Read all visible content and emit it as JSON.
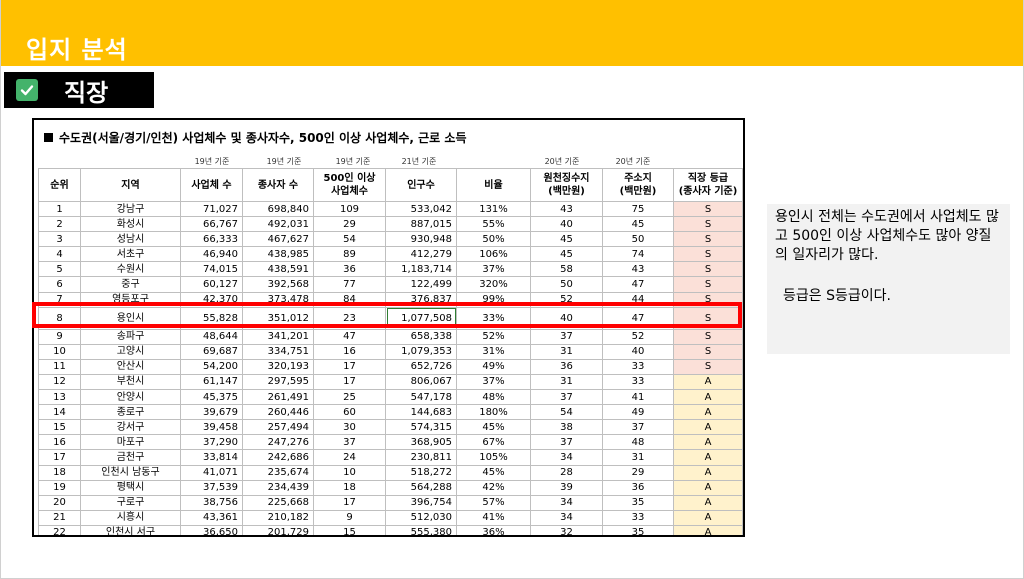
{
  "header": {
    "title": "입지 분석"
  },
  "section": {
    "label": "직장",
    "icon": "check-icon"
  },
  "table": {
    "title": "수도권(서울/경기/인천) 사업체수 및 종사자수, 500인 이상 사업체수, 근로 소득",
    "notes": [
      "19년 기준",
      "19년 기준",
      "19년 기준",
      "21년 기준",
      "20년 기준",
      "20년 기준"
    ],
    "headers": [
      "순위",
      "지역",
      "사업체 수",
      "종사자 수",
      "500인 이상\n사업체수",
      "인구수",
      "비율",
      "원천징수지\n(백만원)",
      "주소지\n(백만원)",
      "직장 등급\n(종사자 기준)"
    ],
    "rows": [
      [
        "1",
        "강남구",
        "71,027",
        "698,840",
        "109",
        "533,042",
        "131%",
        "43",
        "75",
        "S"
      ],
      [
        "2",
        "화성시",
        "66,767",
        "492,031",
        "29",
        "887,015",
        "55%",
        "40",
        "45",
        "S"
      ],
      [
        "3",
        "성남시",
        "66,333",
        "467,627",
        "54",
        "930,948",
        "50%",
        "45",
        "50",
        "S"
      ],
      [
        "4",
        "서초구",
        "46,940",
        "438,985",
        "89",
        "412,279",
        "106%",
        "45",
        "74",
        "S"
      ],
      [
        "5",
        "수원시",
        "74,015",
        "438,591",
        "36",
        "1,183,714",
        "37%",
        "58",
        "43",
        "S"
      ],
      [
        "6",
        "중구",
        "60,127",
        "392,568",
        "77",
        "122,499",
        "320%",
        "50",
        "47",
        "S"
      ],
      [
        "7",
        "영등포구",
        "42,370",
        "373,478",
        "84",
        "376,837",
        "99%",
        "52",
        "44",
        "S"
      ],
      [
        "8",
        "용인시",
        "55,828",
        "351,012",
        "23",
        "1,077,508",
        "33%",
        "40",
        "47",
        "S"
      ],
      [
        "9",
        "송파구",
        "48,644",
        "341,201",
        "47",
        "658,338",
        "52%",
        "37",
        "52",
        "S"
      ],
      [
        "10",
        "고양시",
        "69,687",
        "334,751",
        "16",
        "1,079,353",
        "31%",
        "31",
        "40",
        "S"
      ],
      [
        "11",
        "안산시",
        "54,200",
        "320,193",
        "17",
        "652,726",
        "49%",
        "36",
        "33",
        "S"
      ],
      [
        "12",
        "부천시",
        "61,147",
        "297,595",
        "17",
        "806,067",
        "37%",
        "31",
        "33",
        "A"
      ],
      [
        "13",
        "안양시",
        "45,375",
        "261,491",
        "25",
        "547,178",
        "48%",
        "37",
        "41",
        "A"
      ],
      [
        "14",
        "종로구",
        "39,679",
        "260,446",
        "60",
        "144,683",
        "180%",
        "54",
        "49",
        "A"
      ],
      [
        "15",
        "강서구",
        "39,458",
        "257,494",
        "30",
        "574,315",
        "45%",
        "38",
        "37",
        "A"
      ],
      [
        "16",
        "마포구",
        "37,290",
        "247,276",
        "37",
        "368,905",
        "67%",
        "37",
        "48",
        "A"
      ],
      [
        "17",
        "금천구",
        "33,814",
        "242,686",
        "24",
        "230,811",
        "105%",
        "34",
        "31",
        "A"
      ],
      [
        "18",
        "인천시 남동구",
        "41,071",
        "235,674",
        "10",
        "518,272",
        "45%",
        "28",
        "29",
        "A"
      ],
      [
        "19",
        "평택시",
        "37,539",
        "234,439",
        "18",
        "564,288",
        "42%",
        "39",
        "36",
        "A"
      ],
      [
        "20",
        "구로구",
        "38,756",
        "225,668",
        "17",
        "396,754",
        "57%",
        "34",
        "35",
        "A"
      ],
      [
        "21",
        "시흥시",
        "43,361",
        "210,182",
        "9",
        "512,030",
        "41%",
        "34",
        "33",
        "A"
      ],
      [
        "22",
        "인천시 서구",
        "36,650",
        "201,729",
        "15",
        "555,380",
        "36%",
        "32",
        "35",
        "A"
      ]
    ]
  },
  "note": {
    "text": "용인시 전체는 수도권에서 사업체도 많고 500인 이상 사업체수도 많아 양질의 일자리가 많다.",
    "grade": "등급은 S등급이다."
  },
  "colors": {
    "header": "#ffc000",
    "highlight": "#ff0000",
    "grade_s": "#fbe0d8",
    "grade_a": "#fff2cc"
  }
}
